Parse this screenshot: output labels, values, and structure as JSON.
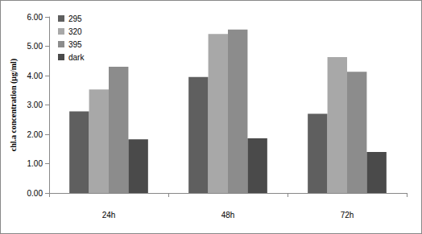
{
  "chart_data": {
    "type": "bar",
    "y_label": "chl.a concentration (μg/ml)",
    "categories": [
      "24h",
      "48h",
      "72h"
    ],
    "series": [
      {
        "name": "295",
        "color": "#5f5f5f",
        "values": [
          2.78,
          3.95,
          2.7
        ]
      },
      {
        "name": "320",
        "color": "#a8a8a8",
        "values": [
          3.53,
          5.42,
          4.63
        ]
      },
      {
        "name": "395",
        "color": "#8c8c8c",
        "values": [
          4.3,
          5.57,
          4.13
        ]
      },
      {
        "name": "dark",
        "color": "#4a4a4a",
        "values": [
          1.83,
          1.86,
          1.4
        ]
      }
    ],
    "ylim": [
      0,
      6
    ],
    "yticks": [
      {
        "value": 0,
        "label": "0.00"
      },
      {
        "value": 1,
        "label": "1.00"
      },
      {
        "value": 2,
        "label": "2.00"
      },
      {
        "value": 3,
        "label": "3.00"
      },
      {
        "value": 4,
        "label": "4.00"
      },
      {
        "value": 5,
        "label": "5.00"
      },
      {
        "value": 6,
        "label": "6.00"
      }
    ],
    "grid": false,
    "legend": "top-left"
  }
}
